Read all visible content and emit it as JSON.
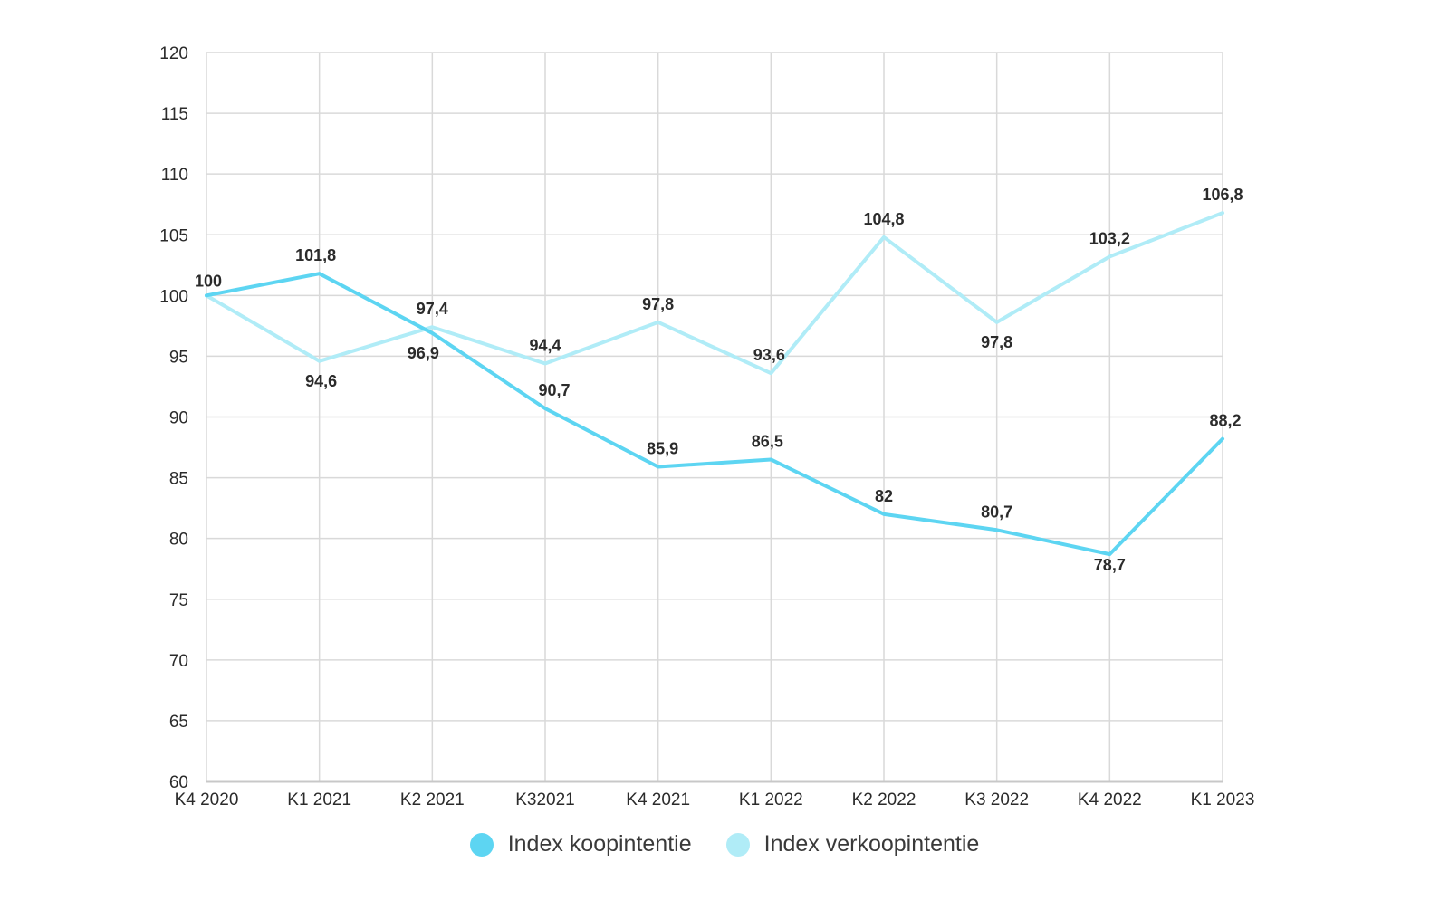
{
  "chart_data": {
    "type": "line",
    "categories": [
      "K4 2020",
      "K1 2021",
      "K2 2021",
      "K32021",
      "K4 2021",
      "K1 2022",
      "K2 2022",
      "K3 2022",
      "K4 2022",
      "K1 2023"
    ],
    "series": [
      {
        "name": "Index koopintentie",
        "values": [
          100,
          101.8,
          96.9,
          90.7,
          85.9,
          86.5,
          82,
          80.7,
          78.7,
          88.2
        ],
        "labels": [
          "100",
          "101,8",
          "96,9",
          "90,7",
          "85,9",
          "86,5",
          "82",
          "80,7",
          "78,7",
          "88,2"
        ],
        "color": "#5dd5f2"
      },
      {
        "name": "Index verkoopintentie",
        "values": [
          100,
          94.6,
          97.4,
          94.4,
          97.8,
          93.6,
          104.8,
          97.8,
          103.2,
          106.8
        ],
        "labels": [
          "",
          "94,6",
          "97,4",
          "94,4",
          "97,8",
          "93,6",
          "104,8",
          "97,8",
          "103,2",
          "106,8"
        ],
        "color": "#b0ecf7"
      }
    ],
    "yticks": [
      "60",
      "65",
      "70",
      "75",
      "80",
      "85",
      "90",
      "95",
      "100",
      "105",
      "110",
      "115",
      "120"
    ],
    "ylim": [
      60,
      120
    ],
    "grid": true,
    "legend_position": "bottom"
  }
}
